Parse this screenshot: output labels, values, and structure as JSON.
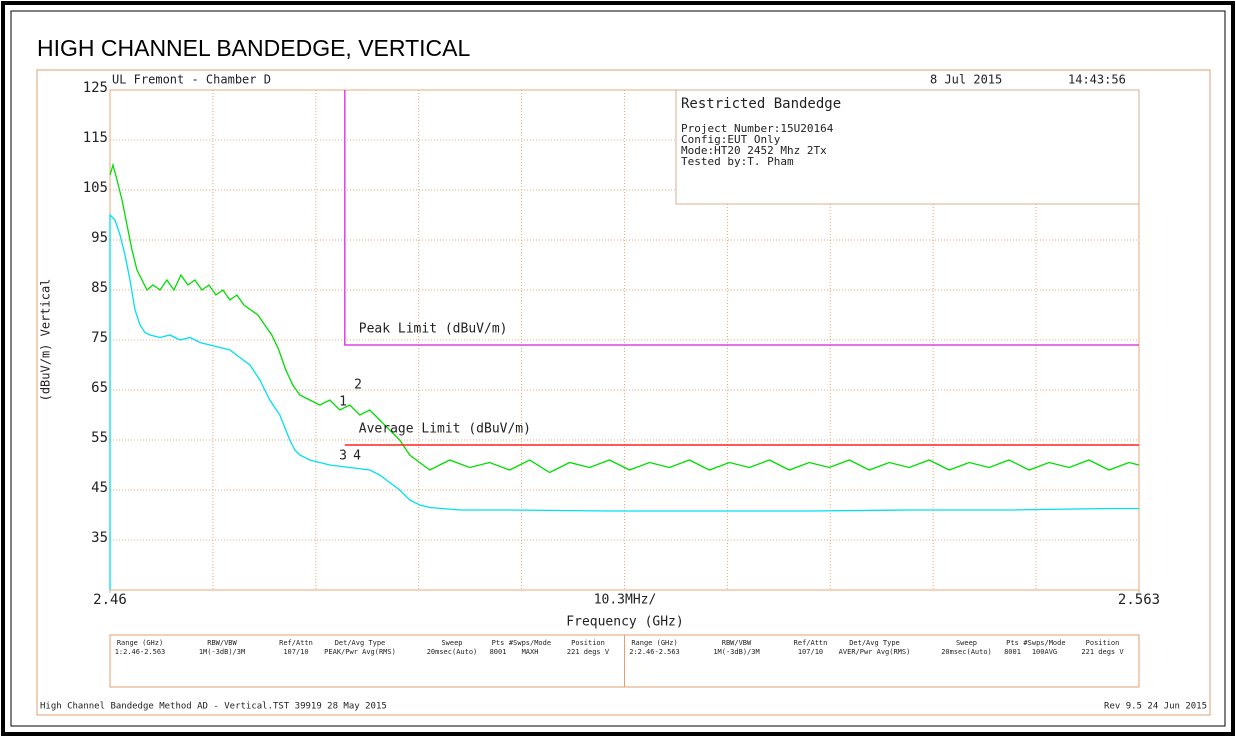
{
  "chart_data": {
    "type": "line",
    "title": "HIGH CHANNEL BANDEDGE, VERTICAL",
    "xlabel": "Frequency (GHz)",
    "ylabel": "(dBuV/m) Vertical",
    "x_center_label": "10.3MHz/",
    "xlim": [
      2.46,
      2.563
    ],
    "xticks": [
      2.46,
      2.563
    ],
    "ylim": [
      25,
      125
    ],
    "yticks": [
      35,
      45,
      55,
      65,
      75,
      85,
      95,
      105,
      115,
      125
    ],
    "grid": true,
    "series": [
      {
        "name": "Peak",
        "color": "#00dd00",
        "x": [
          2.46,
          2.4603,
          2.4607,
          2.4612,
          2.4617,
          2.4622,
          2.4627,
          2.4632,
          2.4637,
          2.4643,
          2.465,
          2.4657,
          2.4664,
          2.4671,
          2.4678,
          2.4685,
          2.4692,
          2.4699,
          2.4706,
          2.4713,
          2.472,
          2.4727,
          2.4734,
          2.4741,
          2.4748,
          2.4755,
          2.4762,
          2.4769,
          2.4776,
          2.4783,
          2.479,
          2.48,
          2.481,
          2.482,
          2.483,
          2.484,
          2.485,
          2.486,
          2.487,
          2.488,
          2.489,
          2.49,
          2.491,
          2.492,
          2.494,
          2.496,
          2.498,
          2.5,
          2.502,
          2.504,
          2.506,
          2.508,
          2.51,
          2.512,
          2.514,
          2.516,
          2.518,
          2.52,
          2.522,
          2.524,
          2.526,
          2.528,
          2.53,
          2.532,
          2.534,
          2.536,
          2.538,
          2.54,
          2.542,
          2.544,
          2.546,
          2.548,
          2.55,
          2.552,
          2.554,
          2.556,
          2.558,
          2.56,
          2.562,
          2.563
        ],
        "values": [
          108,
          110,
          107,
          103,
          98,
          93,
          89,
          87,
          85,
          86,
          85,
          87,
          85,
          88,
          86,
          87,
          85,
          86,
          84,
          85,
          83,
          84,
          82,
          81,
          80,
          78,
          76,
          73,
          69,
          66,
          64,
          63,
          62,
          63,
          61,
          62,
          60,
          61,
          59,
          57,
          55,
          52,
          50.5,
          49,
          51,
          49.5,
          50.5,
          49,
          51,
          48.5,
          50.5,
          49.5,
          51,
          49,
          50.5,
          49.5,
          51,
          49,
          50.5,
          49.5,
          51,
          49,
          50.5,
          49.5,
          51,
          49,
          50.5,
          49.5,
          51,
          49,
          50.5,
          49.5,
          51,
          49,
          50.5,
          49.5,
          51,
          49,
          50.5,
          50
        ]
      },
      {
        "name": "Average",
        "color": "#00e0f0",
        "x": [
          2.46,
          2.46,
          2.4605,
          2.461,
          2.4615,
          2.462,
          2.4625,
          2.463,
          2.4635,
          2.464,
          2.465,
          2.466,
          2.467,
          2.468,
          2.469,
          2.47,
          2.471,
          2.472,
          2.473,
          2.474,
          2.475,
          2.4755,
          2.476,
          2.477,
          2.478,
          2.4785,
          2.479,
          2.48,
          2.481,
          2.482,
          2.484,
          2.486,
          2.487,
          2.488,
          2.489,
          2.49,
          2.491,
          2.492,
          2.495,
          2.5,
          2.51,
          2.52,
          2.53,
          2.54,
          2.55,
          2.56,
          2.563
        ],
        "values": [
          25,
          100,
          99,
          96,
          92,
          87,
          81,
          78,
          76.5,
          76,
          75.5,
          76,
          75,
          75.5,
          74.5,
          74,
          73.5,
          73,
          71.5,
          70,
          67,
          65,
          63,
          60,
          55,
          53,
          52,
          51,
          50.5,
          50,
          49.5,
          49,
          48,
          46.5,
          45,
          43,
          42,
          41.5,
          41,
          41,
          40.8,
          40.8,
          40.8,
          41,
          41,
          41.3,
          41.3
        ]
      },
      {
        "name": "Peak Limit (dBuV/m)",
        "color": "#e040e0",
        "x": [
          2.4835,
          2.4835,
          2.563
        ],
        "values": [
          125,
          74,
          74
        ]
      },
      {
        "name": "Average Limit (dBuV/m)",
        "color": "#ff2020",
        "x": [
          2.4835,
          2.563
        ],
        "values": [
          54,
          54
        ]
      }
    ],
    "annotations": [
      "1",
      "2",
      "3",
      "4"
    ]
  },
  "header": {
    "site": "UL Fremont - Chamber D",
    "date": "8 Jul 2015",
    "time": "14:43:56"
  },
  "info_box": {
    "title": "Restricted Bandedge",
    "lines": [
      "Project Number:15U20164",
      "Config:EUT Only",
      "Mode:HT20 2452 Mhz 2Tx",
      "Tested by:T. Pham"
    ]
  },
  "table": {
    "headers": [
      "Range (GHz)",
      "RBW/VBW",
      "Ref/Attn",
      "Det/Avg Type",
      "Sweep",
      "Pts",
      "#Swps/Mode",
      "Position"
    ],
    "rows": [
      [
        "1:2.46-2.563",
        "1M(-3dB)/3M",
        "107/10",
        "PEAK/Pwr Avg(RMS)",
        "20msec(Auto)",
        "8001",
        "MAXH",
        "221 degs V"
      ],
      [
        "2:2.46-2.563",
        "1M(-3dB)/3M",
        "107/10",
        "AVER/Pwr Avg(RMS)",
        "20msec(Auto)",
        "8001",
        "100AVG",
        "221 degs V"
      ]
    ]
  },
  "footer": {
    "left": "High Channel Bandedge Method AD - Vertical.TST 39919 28 May 2015",
    "right": "Rev 9.5 24 Jun 2015"
  }
}
